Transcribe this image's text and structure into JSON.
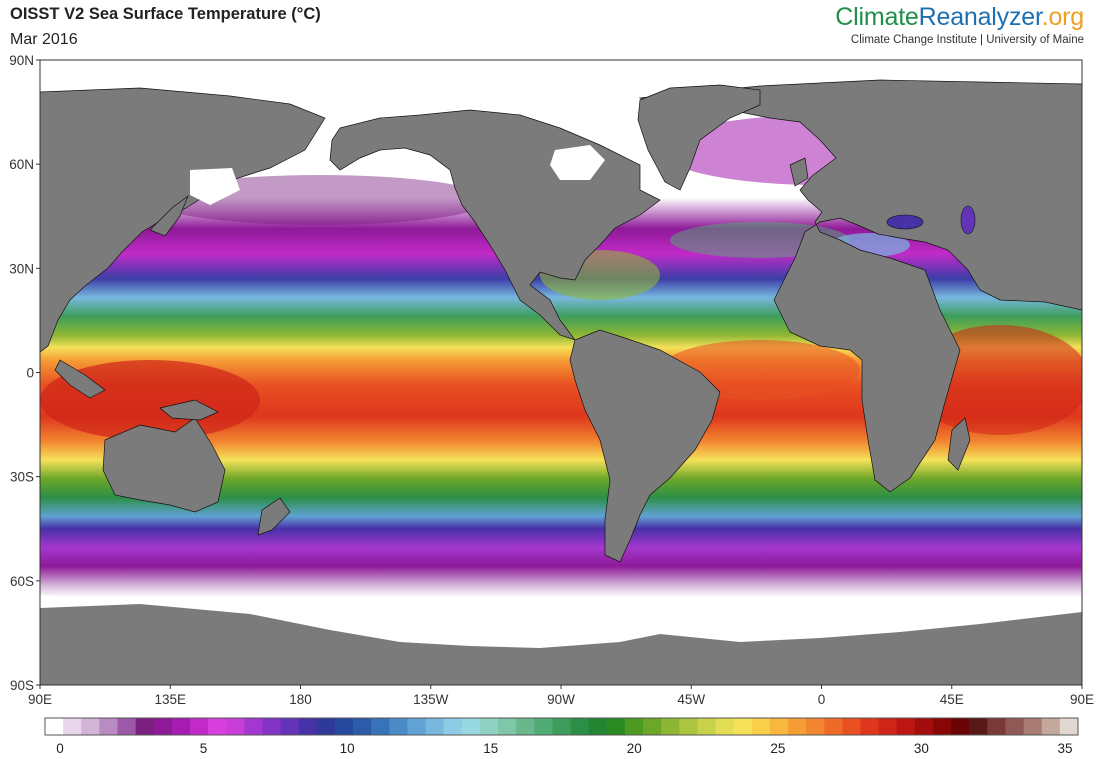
{
  "header": {
    "title": "OISST V2 Sea Surface Temperature (°C)",
    "date": "Mar 2016"
  },
  "brand": {
    "name_part1": "Climate",
    "name_part2": "Reanalyzer",
    "name_part3": ".org",
    "tagline": "Climate Change Institute | University of Maine",
    "colors": {
      "part1": "#1f8f4a",
      "part2": "#1e6fb0",
      "part3": "#f0a020"
    }
  },
  "map": {
    "projection": "equirectangular",
    "lon_range": [
      90,
      450
    ],
    "lat_range": [
      -90,
      90
    ],
    "ocean_colors": "temperature shading",
    "land_color": "#7b7b7b",
    "sea_ice_color": "#ffffff"
  },
  "axes": {
    "y_ticks": [
      "90N",
      "60N",
      "30N",
      "0",
      "30S",
      "60S",
      "90S"
    ],
    "x_ticks": [
      "90E",
      "135E",
      "180",
      "135W",
      "90W",
      "45W",
      "0",
      "45E",
      "90E"
    ]
  },
  "colorbar": {
    "min": 0,
    "max": 35,
    "labels": [
      "0",
      "5",
      "10",
      "15",
      "20",
      "25",
      "30",
      "35"
    ],
    "colors": [
      "#ffffff",
      "#e8d6ea",
      "#d3b4d9",
      "#b88bc3",
      "#9b59a8",
      "#7a1f80",
      "#8e1a98",
      "#a61cb0",
      "#c22ac8",
      "#d740dc",
      "#c83cd8",
      "#a437cf",
      "#8234c6",
      "#6333b8",
      "#4731a6",
      "#2f3a98",
      "#26499d",
      "#2c5ca9",
      "#3773b8",
      "#4a8ac6",
      "#60a2d3",
      "#78b8de",
      "#8ecbe5",
      "#98d8e0",
      "#8fd2c4",
      "#7fc7a8",
      "#68b88c",
      "#52ab74",
      "#3e9d5c",
      "#2c8f46",
      "#228532",
      "#2b8b22",
      "#4d9a22",
      "#6da72a",
      "#8db634",
      "#abc53e",
      "#c7d24a",
      "#e2dd55",
      "#f5e15a",
      "#f8cf4b",
      "#f8b840",
      "#f59e36",
      "#f2852f",
      "#ee6a28",
      "#e85022",
      "#de371d",
      "#cf2418",
      "#bb1612",
      "#a20c0c",
      "#870707",
      "#6b0505",
      "#5a1818",
      "#7a3a38",
      "#8f5a56",
      "#a87c74",
      "#c4a89c",
      "#e2d8d2"
    ]
  }
}
